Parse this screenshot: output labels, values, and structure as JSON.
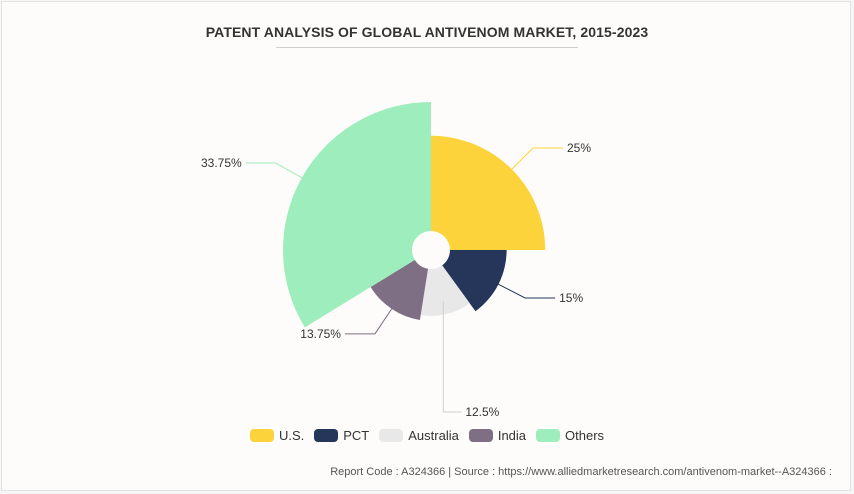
{
  "header": {
    "title": "PATENT ANALYSIS OF GLOBAL ANTIVENOM MARKET, 2015-2023"
  },
  "chart_data": {
    "type": "pie",
    "variant": "rose (variable radius)",
    "title": "PATENT ANALYSIS OF GLOBAL ANTIVENOM MARKET, 2015-2023",
    "legend_position": "bottom",
    "slices": [
      {
        "name": "U.S.",
        "value": 25,
        "label": "25%",
        "color": "#fdd33b"
      },
      {
        "name": "PCT",
        "value": 15,
        "label": "15%",
        "color": "#25365a"
      },
      {
        "name": "Australia",
        "value": 12.5,
        "label": "12.5%",
        "color": "#e8e8e8"
      },
      {
        "name": "India",
        "value": 13.75,
        "label": "13.75%",
        "color": "#7f6f85"
      },
      {
        "name": "Others",
        "value": 33.75,
        "label": "33.75%",
        "color": "#9eedbc"
      }
    ]
  },
  "footer": {
    "text": "Report Code : A324366  |  Source : https://www.alliedmarketresearch.com/antivenom-market--A324366 :"
  }
}
